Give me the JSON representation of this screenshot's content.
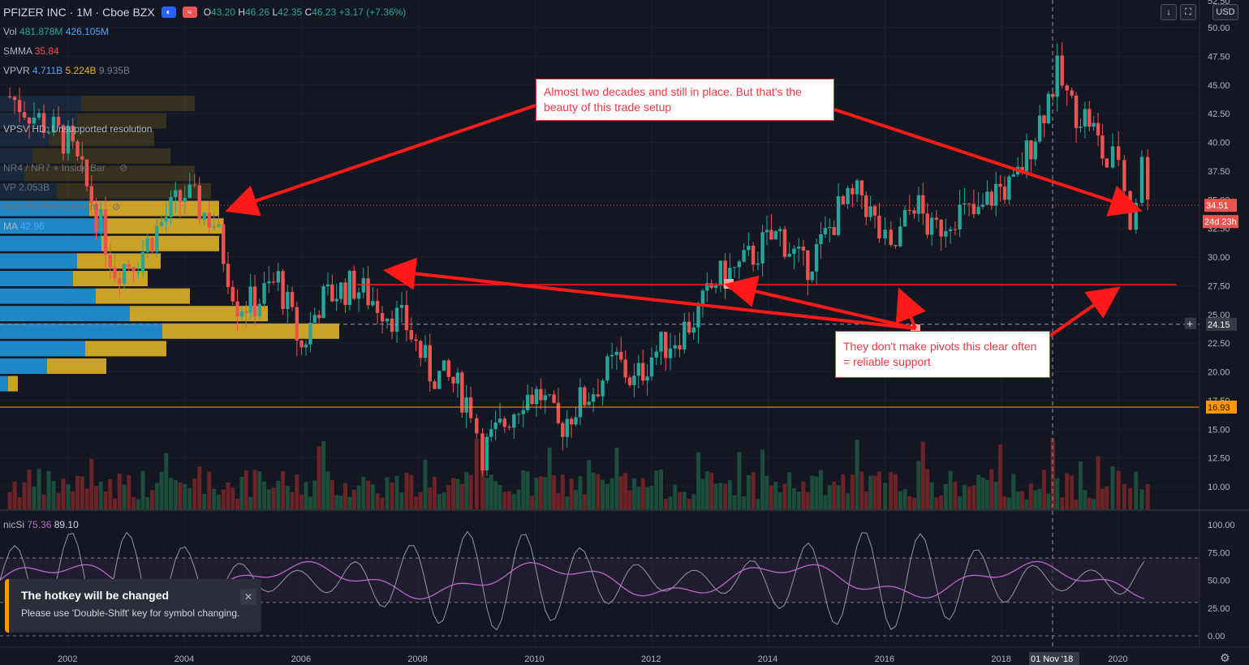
{
  "header": {
    "symbol": "PFIZER INC · 1M · Cboe BZX",
    "open_label": "O",
    "open": "43.20",
    "high_label": "H",
    "high": "46.26",
    "low_label": "L",
    "low": "42.35",
    "close_label": "C",
    "close": "46.23",
    "change": "+3.17 (+7.36%)"
  },
  "indicators": {
    "vol": {
      "name": "Vol",
      "v1": "481.878M",
      "v2": "426.105M"
    },
    "smma": {
      "name": "SMMA",
      "v1": "35.84"
    },
    "vpvr": {
      "name": "VPVR",
      "v1": "4.711B",
      "v2": "5.224B",
      "v3": "9.935B"
    },
    "vpsv": {
      "name": "VPSV HD: Unsupported resolution"
    },
    "nr4": {
      "name": "NR4 / NR7 + Inside Bar"
    },
    "vp": {
      "name": "VP",
      "v1": "2.053B"
    },
    "fib": {
      "name": "Auto Fib Retracement"
    },
    "ma": {
      "name": "MA",
      "v1": "42.96"
    }
  },
  "oscillator": {
    "name": "nicSi",
    "v1": "75.36",
    "v2": "89.10"
  },
  "usd_button": "USD",
  "price_axis": {
    "ticks": [
      "50.00",
      "47.50",
      "45.00",
      "42.50",
      "40.00",
      "37.50",
      "35.00",
      "32.50",
      "30.00",
      "27.50",
      "25.00",
      "22.50",
      "20.00",
      "17.50",
      "15.00",
      "12.50",
      "10.00"
    ],
    "last_price": "34.51",
    "countdown": "24d 23h",
    "crosshair_price": "24.15",
    "support_price": "16.93",
    "top_label": "52.50"
  },
  "osc_axis": {
    "ticks": [
      "100.00",
      "75.00",
      "50.00",
      "25.00",
      "0.00"
    ]
  },
  "time_axis": {
    "ticks": [
      "2002",
      "2004",
      "2006",
      "2008",
      "2010",
      "2012",
      "2014",
      "2016",
      "2018",
      "2020"
    ],
    "crosshair_date": "01 Nov '18"
  },
  "annotations": {
    "top": "Almost two decades and still in place. But that's the beauty of this trade setup",
    "bottom": "They don't make pivots this clear often = reliable support"
  },
  "toast": {
    "title": "The hotkey will be changed",
    "message": "Please use 'Double-Shift' key for symbol changing."
  },
  "colors": {
    "up": "#26a69a",
    "down": "#ef5350",
    "annotation": "#ff1a1a",
    "support": "#ff9800",
    "vp_blue": "#1e88c7",
    "vp_gold": "#c9a227"
  },
  "chart_data": {
    "type": "candlestick",
    "title": "PFIZER INC · 1M · Cboe BZX",
    "x_range": [
      2001,
      2021
    ],
    "y_range": [
      8.0,
      52.5
    ],
    "closes": [
      {
        "t": 2001.0,
        "c": 44.0
      },
      {
        "t": 2001.5,
        "c": 42.0
      },
      {
        "t": 2002.0,
        "c": 40.0
      },
      {
        "t": 2002.4,
        "c": 35.0
      },
      {
        "t": 2002.8,
        "c": 29.0
      },
      {
        "t": 2003.2,
        "c": 30.0
      },
      {
        "t": 2003.6,
        "c": 33.0
      },
      {
        "t": 2004.0,
        "c": 35.5
      },
      {
        "t": 2004.5,
        "c": 33.0
      },
      {
        "t": 2004.9,
        "c": 26.0
      },
      {
        "t": 2005.2,
        "c": 26.0
      },
      {
        "t": 2005.6,
        "c": 28.0
      },
      {
        "t": 2006.0,
        "c": 22.0
      },
      {
        "t": 2006.3,
        "c": 26.0
      },
      {
        "t": 2006.6,
        "c": 27.0
      },
      {
        "t": 2006.9,
        "c": 27.5
      },
      {
        "t": 2007.3,
        "c": 26.0
      },
      {
        "t": 2007.8,
        "c": 24.0
      },
      {
        "t": 2008.2,
        "c": 20.0
      },
      {
        "t": 2008.6,
        "c": 19.0
      },
      {
        "t": 2008.9,
        "c": 17.0
      },
      {
        "t": 2009.1,
        "c": 13.0
      },
      {
        "t": 2009.4,
        "c": 15.0
      },
      {
        "t": 2009.8,
        "c": 18.0
      },
      {
        "t": 2010.1,
        "c": 18.0
      },
      {
        "t": 2010.4,
        "c": 15.0
      },
      {
        "t": 2010.7,
        "c": 17.0
      },
      {
        "t": 2011.0,
        "c": 18.5
      },
      {
        "t": 2011.4,
        "c": 21.0
      },
      {
        "t": 2011.7,
        "c": 19.0
      },
      {
        "t": 2012.0,
        "c": 21.5
      },
      {
        "t": 2012.4,
        "c": 23.0
      },
      {
        "t": 2012.8,
        "c": 25.0
      },
      {
        "t": 2013.1,
        "c": 28.0
      },
      {
        "t": 2013.5,
        "c": 29.0
      },
      {
        "t": 2013.9,
        "c": 31.0
      },
      {
        "t": 2014.2,
        "c": 32.0
      },
      {
        "t": 2014.6,
        "c": 29.0
      },
      {
        "t": 2014.9,
        "c": 31.0
      },
      {
        "t": 2015.2,
        "c": 34.0
      },
      {
        "t": 2015.6,
        "c": 35.5
      },
      {
        "t": 2015.9,
        "c": 32.0
      },
      {
        "t": 2016.1,
        "c": 30.0
      },
      {
        "t": 2016.5,
        "c": 35.0
      },
      {
        "t": 2016.8,
        "c": 32.0
      },
      {
        "t": 2017.2,
        "c": 34.0
      },
      {
        "t": 2017.6,
        "c": 33.5
      },
      {
        "t": 2017.9,
        "c": 36.0
      },
      {
        "t": 2018.2,
        "c": 36.0
      },
      {
        "t": 2018.5,
        "c": 40.0
      },
      {
        "t": 2018.8,
        "c": 44.0
      },
      {
        "t": 2018.95,
        "c": 46.0
      },
      {
        "t": 2019.2,
        "c": 43.0
      },
      {
        "t": 2019.5,
        "c": 42.0
      },
      {
        "t": 2019.8,
        "c": 38.0
      },
      {
        "t": 2020.0,
        "c": 39.0
      },
      {
        "t": 2020.2,
        "c": 33.0
      },
      {
        "t": 2020.4,
        "c": 38.0
      },
      {
        "t": 2020.6,
        "c": 34.5
      }
    ],
    "support_level": 27.6,
    "dashed_level": 24.15,
    "orange_level": 16.93
  }
}
